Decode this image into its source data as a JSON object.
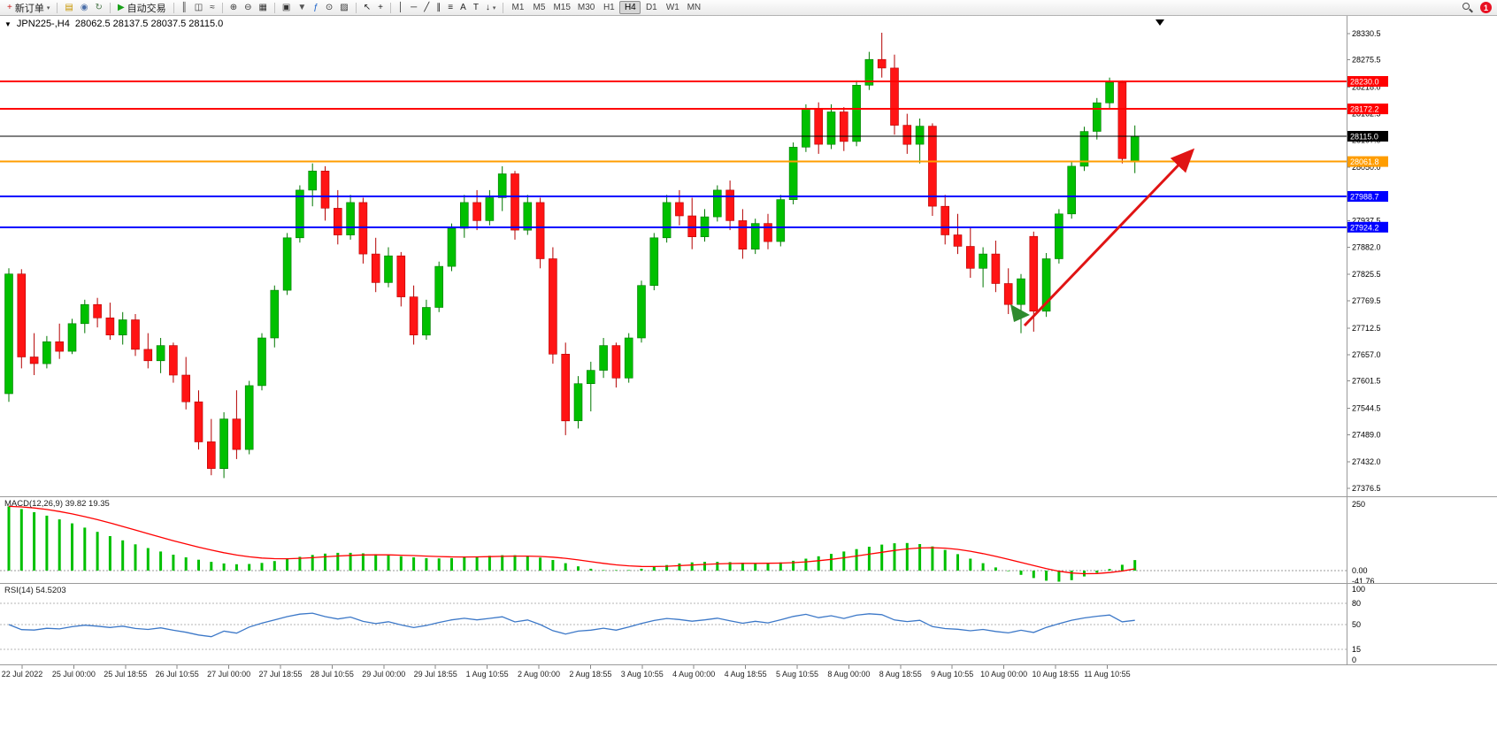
{
  "toolbar": {
    "groups": [
      {
        "items": [
          {
            "name": "new-order-button",
            "glyph": "+",
            "glyph_color": "#c82020",
            "label": "新订单",
            "caret": "▾"
          }
        ]
      },
      {
        "items": [
          {
            "name": "metaeditor-icon",
            "glyph": "▤",
            "glyph_color": "#c89600"
          },
          {
            "name": "experts-icon",
            "glyph": "◉",
            "glyph_color": "#4a6ea8"
          },
          {
            "name": "refresh-icon",
            "glyph": "↻",
            "glyph_color": "#4f7a4f"
          }
        ]
      },
      {
        "items": [
          {
            "name": "autotrading-button",
            "glyph": "▶",
            "glyph_color": "#18a018",
            "label": "自动交易"
          }
        ]
      },
      {
        "items": [
          {
            "name": "bar-chart-type-icon",
            "glyph": "║",
            "glyph_color": "#333333"
          },
          {
            "name": "candlestick-type-icon",
            "glyph": "◫",
            "glyph_color": "#333333"
          },
          {
            "name": "line-chart-type-icon",
            "glyph": "≈",
            "glyph_color": "#333333"
          }
        ]
      },
      {
        "items": [
          {
            "name": "zoom-in-icon",
            "glyph": "⊕",
            "glyph_color": "#333333"
          },
          {
            "name": "zoom-out-icon",
            "glyph": "⊖",
            "glyph_color": "#333333"
          },
          {
            "name": "tile-windows-icon",
            "glyph": "▦",
            "glyph_color": "#333333"
          }
        ]
      },
      {
        "items": [
          {
            "name": "new-chart-icon",
            "glyph": "▣",
            "glyph_color": "#333333"
          },
          {
            "name": "profiles-icon",
            "glyph": "▼",
            "glyph_color": "#555555"
          },
          {
            "name": "indicators-icon",
            "glyph": "ƒ",
            "glyph_color": "#1860c8"
          },
          {
            "name": "periods-icon",
            "glyph": "⊙",
            "glyph_color": "#333333"
          },
          {
            "name": "templates-icon",
            "glyph": "▨",
            "glyph_color": "#333333"
          }
        ]
      },
      {
        "items": [
          {
            "name": "cursor-icon",
            "glyph": "↖",
            "glyph_color": "#222222"
          },
          {
            "name": "crosshair-icon",
            "glyph": "+",
            "glyph_color": "#222222"
          }
        ]
      },
      {
        "items": [
          {
            "name": "vertical-line-icon",
            "glyph": "│",
            "glyph_color": "#222222"
          },
          {
            "name": "horizontal-line-icon",
            "glyph": "─",
            "glyph_color": "#222222"
          },
          {
            "name": "trendline-icon",
            "glyph": "╱",
            "glyph_color": "#222222"
          },
          {
            "name": "equidistant-channel-icon",
            "glyph": "∥",
            "glyph_color": "#222222"
          },
          {
            "name": "fibonacci-icon",
            "glyph": "≡",
            "glyph_color": "#222222"
          },
          {
            "name": "text-icon",
            "glyph": "A",
            "glyph_color": "#222222"
          },
          {
            "name": "text-label-icon",
            "glyph": "T",
            "glyph_color": "#222222"
          },
          {
            "name": "arrows-tool-icon",
            "glyph": "↓",
            "glyph_color": "#222222",
            "caret": "▾"
          }
        ]
      }
    ],
    "timeframes": {
      "items": [
        "M1",
        "M5",
        "M15",
        "M30",
        "H1",
        "H4",
        "D1",
        "W1",
        "MN"
      ],
      "active": "H4"
    }
  },
  "notifications": {
    "badge": "1"
  },
  "chart_header": {
    "toggle_glyph": "▼",
    "symbol_period": "JPN225-,H4",
    "ohlc_text": "28062.5 28137.5 28037.5 28115.0"
  },
  "panels": {
    "macd_label": "MACD(12,26,9) 39.82 19.35",
    "rsi_label": "RSI(14) 54.5203"
  },
  "chart_data": {
    "type": "candlestick",
    "symbol": "JPN225-",
    "timeframe": "H4",
    "last_ohlc": {
      "open": 28062.5,
      "high": 28137.5,
      "low": 28037.5,
      "close": 28115.0
    },
    "price_range": [
      27376.5,
      28345.0
    ],
    "y_ticks": [
      "28330.5",
      "28275.5",
      "28218.0",
      "28162.5",
      "28107.0",
      "28050.0",
      "27937.5",
      "27882.0",
      "27825.5",
      "27769.5",
      "27712.5",
      "27657.0",
      "27601.5",
      "27544.5",
      "27489.0",
      "27432.0",
      "27376.5"
    ],
    "x_labels": [
      "22 Jul 2022",
      "25 Jul 00:00",
      "25 Jul 18:55",
      "26 Jul 10:55",
      "27 Jul 00:00",
      "27 Jul 18:55",
      "28 Jul 10:55",
      "29 Jul 00:00",
      "29 Jul 18:55",
      "1 Aug 10:55",
      "2 Aug 00:00",
      "2 Aug 18:55",
      "3 Aug 10:55",
      "4 Aug 00:00",
      "4 Aug 18:55",
      "5 Aug 10:55",
      "8 Aug 00:00",
      "8 Aug 18:55",
      "9 Aug 10:55",
      "10 Aug 00:00",
      "10 Aug 18:55",
      "11 Aug 10:55"
    ],
    "colors": {
      "up": "#00c000",
      "up_border": "#007800",
      "down": "#ff1414",
      "down_border": "#b40000",
      "macd_hist": "#00c000",
      "macd_signal": "#ff0000",
      "rsi_line": "#3c78c8",
      "axis_text": "#000000",
      "grid_dash": "#9a9a9a",
      "badge_text": "#ffffff"
    },
    "candles": [
      [
        27575,
        27838,
        27558,
        27826
      ],
      [
        27826,
        27836,
        27628,
        27652
      ],
      [
        27652,
        27702,
        27614,
        27638
      ],
      [
        27638,
        27696,
        27628,
        27684
      ],
      [
        27684,
        27722,
        27648,
        27664
      ],
      [
        27664,
        27732,
        27658,
        27722
      ],
      [
        27722,
        27772,
        27702,
        27762
      ],
      [
        27762,
        27776,
        27714,
        27734
      ],
      [
        27734,
        27766,
        27688,
        27698
      ],
      [
        27698,
        27746,
        27678,
        27730
      ],
      [
        27730,
        27742,
        27654,
        27668
      ],
      [
        27668,
        27702,
        27628,
        27644
      ],
      [
        27644,
        27692,
        27618,
        27676
      ],
      [
        27676,
        27682,
        27598,
        27614
      ],
      [
        27614,
        27652,
        27542,
        27558
      ],
      [
        27558,
        27582,
        27458,
        27474
      ],
      [
        27474,
        27522,
        27404,
        27418
      ],
      [
        27418,
        27536,
        27398,
        27522
      ],
      [
        27522,
        27582,
        27438,
        27458
      ],
      [
        27458,
        27602,
        27448,
        27592
      ],
      [
        27592,
        27702,
        27582,
        27692
      ],
      [
        27692,
        27802,
        27672,
        27792
      ],
      [
        27792,
        27912,
        27782,
        27902
      ],
      [
        27902,
        28012,
        27892,
        28002
      ],
      [
        28002,
        28058,
        27968,
        28042
      ],
      [
        28042,
        28052,
        27938,
        27964
      ],
      [
        27964,
        28002,
        27888,
        27908
      ],
      [
        27908,
        27992,
        27898,
        27976
      ],
      [
        27976,
        27986,
        27848,
        27868
      ],
      [
        27868,
        27902,
        27788,
        27808
      ],
      [
        27808,
        27882,
        27798,
        27864
      ],
      [
        27864,
        27872,
        27758,
        27778
      ],
      [
        27778,
        27802,
        27678,
        27698
      ],
      [
        27698,
        27772,
        27688,
        27756
      ],
      [
        27756,
        27852,
        27746,
        27842
      ],
      [
        27842,
        27932,
        27832,
        27922
      ],
      [
        27922,
        27992,
        27902,
        27976
      ],
      [
        27976,
        28002,
        27918,
        27938
      ],
      [
        27938,
        28002,
        27928,
        27986
      ],
      [
        27986,
        28052,
        27958,
        28036
      ],
      [
        28036,
        28042,
        27898,
        27918
      ],
      [
        27918,
        27992,
        27908,
        27976
      ],
      [
        27976,
        27986,
        27838,
        27858
      ],
      [
        27858,
        27882,
        27638,
        27658
      ],
      [
        27658,
        27682,
        27488,
        27518
      ],
      [
        27518,
        27612,
        27502,
        27596
      ],
      [
        27596,
        27642,
        27538,
        27624
      ],
      [
        27624,
        27692,
        27608,
        27676
      ],
      [
        27676,
        27682,
        27588,
        27608
      ],
      [
        27608,
        27702,
        27598,
        27692
      ],
      [
        27692,
        27812,
        27682,
        27802
      ],
      [
        27802,
        27912,
        27792,
        27902
      ],
      [
        27902,
        27992,
        27892,
        27976
      ],
      [
        27976,
        28002,
        27928,
        27948
      ],
      [
        27948,
        27986,
        27878,
        27904
      ],
      [
        27904,
        27962,
        27894,
        27946
      ],
      [
        27946,
        28012,
        27936,
        28002
      ],
      [
        28002,
        28022,
        27918,
        27938
      ],
      [
        27938,
        27962,
        27858,
        27878
      ],
      [
        27878,
        27942,
        27868,
        27932
      ],
      [
        27932,
        27952,
        27878,
        27894
      ],
      [
        27894,
        27992,
        27884,
        27982
      ],
      [
        27982,
        28102,
        27972,
        28092
      ],
      [
        28092,
        28182,
        28082,
        28172
      ],
      [
        28172,
        28186,
        28078,
        28098
      ],
      [
        28098,
        28182,
        28088,
        28166
      ],
      [
        28166,
        28176,
        28084,
        28104
      ],
      [
        28104,
        28232,
        28094,
        28222
      ],
      [
        28222,
        28292,
        28212,
        28276
      ],
      [
        28276,
        28332,
        28238,
        28258
      ],
      [
        28258,
        28286,
        28118,
        28138
      ],
      [
        28138,
        28162,
        28078,
        28098
      ],
      [
        28098,
        28152,
        28058,
        28136
      ],
      [
        28136,
        28142,
        27948,
        27968
      ],
      [
        27968,
        27992,
        27888,
        27908
      ],
      [
        27908,
        27952,
        27868,
        27884
      ],
      [
        27884,
        27922,
        27818,
        27838
      ],
      [
        27838,
        27882,
        27798,
        27868
      ],
      [
        27868,
        27896,
        27788,
        27806
      ],
      [
        27806,
        27838,
        27742,
        27762
      ],
      [
        27762,
        27826,
        27702,
        27816
      ],
      [
        27905,
        27915,
        27705,
        27748
      ],
      [
        27748,
        27870,
        27736,
        27858
      ],
      [
        27858,
        27962,
        27848,
        27952
      ],
      [
        27952,
        28062,
        27942,
        28052
      ],
      [
        28052,
        28135,
        28042,
        28125
      ],
      [
        28125,
        28195,
        28108,
        28185
      ],
      [
        28185,
        28238,
        28172,
        28228
      ],
      [
        28228,
        28232,
        28058,
        28068
      ],
      [
        28062.5,
        28137.5,
        28037.5,
        28115.0
      ]
    ],
    "horizontal_lines": [
      {
        "label": "28230.0",
        "price": 28230.0,
        "color": "#ff0000",
        "width": 2
      },
      {
        "label": "28172.2",
        "price": 28172.2,
        "color": "#ff0000",
        "width": 2
      },
      {
        "label": "28115.0",
        "price": 28115.0,
        "color": "#000000",
        "width": 1
      },
      {
        "label": "28061.8",
        "price": 28061.8,
        "color": "#ff9d00",
        "width": 2
      },
      {
        "label": "27988.7",
        "price": 27988.7,
        "color": "#0000ff",
        "width": 2
      },
      {
        "label": "27924.2",
        "price": 27924.2,
        "color": "#0000ff",
        "width": 2
      }
    ],
    "macd": {
      "histogram": [
        242,
        232,
        220,
        207,
        193,
        178,
        162,
        146,
        130,
        114,
        99,
        85,
        72,
        60,
        50,
        41,
        33,
        27,
        24,
        25,
        29,
        36,
        44,
        52,
        59,
        64,
        67,
        67,
        65,
        62,
        58,
        54,
        50,
        47,
        46,
        47,
        50,
        53,
        56,
        58,
        58,
        55,
        49,
        40,
        28,
        16,
        7,
        2,
        0,
        2,
        7,
        14,
        21,
        27,
        31,
        33,
        33,
        32,
        30,
        28,
        28,
        31,
        37,
        45,
        54,
        63,
        72,
        81,
        90,
        98,
        103,
        104,
        100,
        91,
        78,
        62,
        45,
        28,
        12,
        -2,
        -16,
        -28,
        -38,
        -41.76,
        -36,
        -22,
        -8,
        6,
        22,
        39.82
      ],
      "signal_period": 9,
      "axis_labels": [
        "250",
        "0.00",
        "-41.76"
      ],
      "axis_values": [
        250,
        0,
        -41.76
      ]
    },
    "rsi": {
      "period": 14,
      "levels": [
        80,
        50,
        15
      ],
      "axis_labels": [
        "100",
        "80",
        "50",
        "15",
        "0"
      ],
      "axis_values": [
        100,
        80,
        50,
        15,
        0
      ]
    },
    "annotations": [
      {
        "name": "trend-arrow",
        "type": "arrow-line",
        "color": "#e01414",
        "from": [
          1158,
          368
        ],
        "to": [
          1346,
          172
        ],
        "width": 3
      },
      {
        "name": "green-arrow-marker",
        "type": "triangle",
        "color": "#2e8b2e",
        "points": [
          [
            1142,
            344
          ],
          [
            1164,
            356
          ],
          [
            1146,
            364
          ]
        ]
      }
    ],
    "chart_shift_marker": {
      "points": [
        [
          1306,
          22
        ],
        [
          1316,
          22
        ],
        [
          1311,
          29
        ]
      ],
      "color": "#000000"
    }
  }
}
